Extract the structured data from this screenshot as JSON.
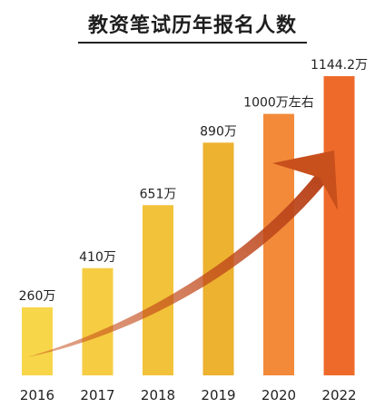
{
  "chart_data": {
    "type": "bar",
    "title": "教资笔试历年报名人数",
    "categories": [
      "2016",
      "2017",
      "2018",
      "2019",
      "2020",
      "2022"
    ],
    "values": [
      260,
      410,
      651,
      890,
      1000,
      1144.2
    ],
    "data_labels": [
      "260万",
      "410万",
      "651万",
      "890万",
      "1000万左右",
      "1144.2万"
    ],
    "unit": "万",
    "ylim": [
      0,
      1200
    ],
    "grid": false,
    "legend": "none",
    "colors": [
      "#F7D64A",
      "#F6CC42",
      "#F2C23A",
      "#EDB22F",
      "#F28A3A",
      "#EE6A2A"
    ],
    "trend_arrow_color": "#C8501C"
  }
}
